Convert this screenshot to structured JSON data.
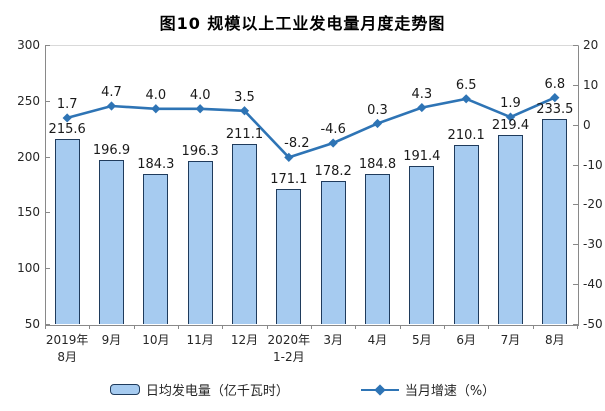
{
  "title": "图10 规模以上工业发电量月度走势图",
  "chart_data": {
    "type": "bar",
    "subtype": "combo-bar-line-dual-axis",
    "title": "图10 规模以上工业发电量月度走势图",
    "categories": [
      "2019年\n8月",
      "9月",
      "10月",
      "11月",
      "12月",
      "2020年\n1-2月",
      "3月",
      "4月",
      "5月",
      "6月",
      "7月",
      "8月"
    ],
    "series": [
      {
        "name": "日均发电量（亿千瓦时）",
        "type": "bar",
        "axis": "left",
        "values": [
          215.6,
          196.9,
          184.3,
          196.3,
          211.1,
          171.1,
          178.2,
          184.8,
          191.4,
          210.1,
          219.4,
          233.5
        ],
        "fill_color": "#a6cbf0",
        "stroke_color": "#1f3b5c"
      },
      {
        "name": "当月增速（%）",
        "type": "line",
        "axis": "right",
        "marker": "diamond",
        "values": [
          1.7,
          4.7,
          4.0,
          4.0,
          3.5,
          -8.2,
          -4.6,
          0.3,
          4.3,
          6.5,
          1.9,
          6.8
        ],
        "line_color": "#2e74b5"
      }
    ],
    "left_axis": {
      "min": 50,
      "max": 300,
      "ticks": [
        300,
        250,
        200,
        150,
        100,
        50
      ]
    },
    "right_axis": {
      "min": -50,
      "max": 20,
      "ticks": [
        20,
        10,
        0,
        -10,
        -20,
        -30,
        -40,
        -50
      ]
    },
    "grid": false,
    "legend_position": "bottom",
    "data_labels": true
  },
  "colors": {
    "bar_fill": "#a6cbf0",
    "bar_stroke": "#1f3b5c",
    "line": "#2e74b5",
    "axis": "#898989",
    "text": "#262626",
    "background": "#ffffff"
  }
}
